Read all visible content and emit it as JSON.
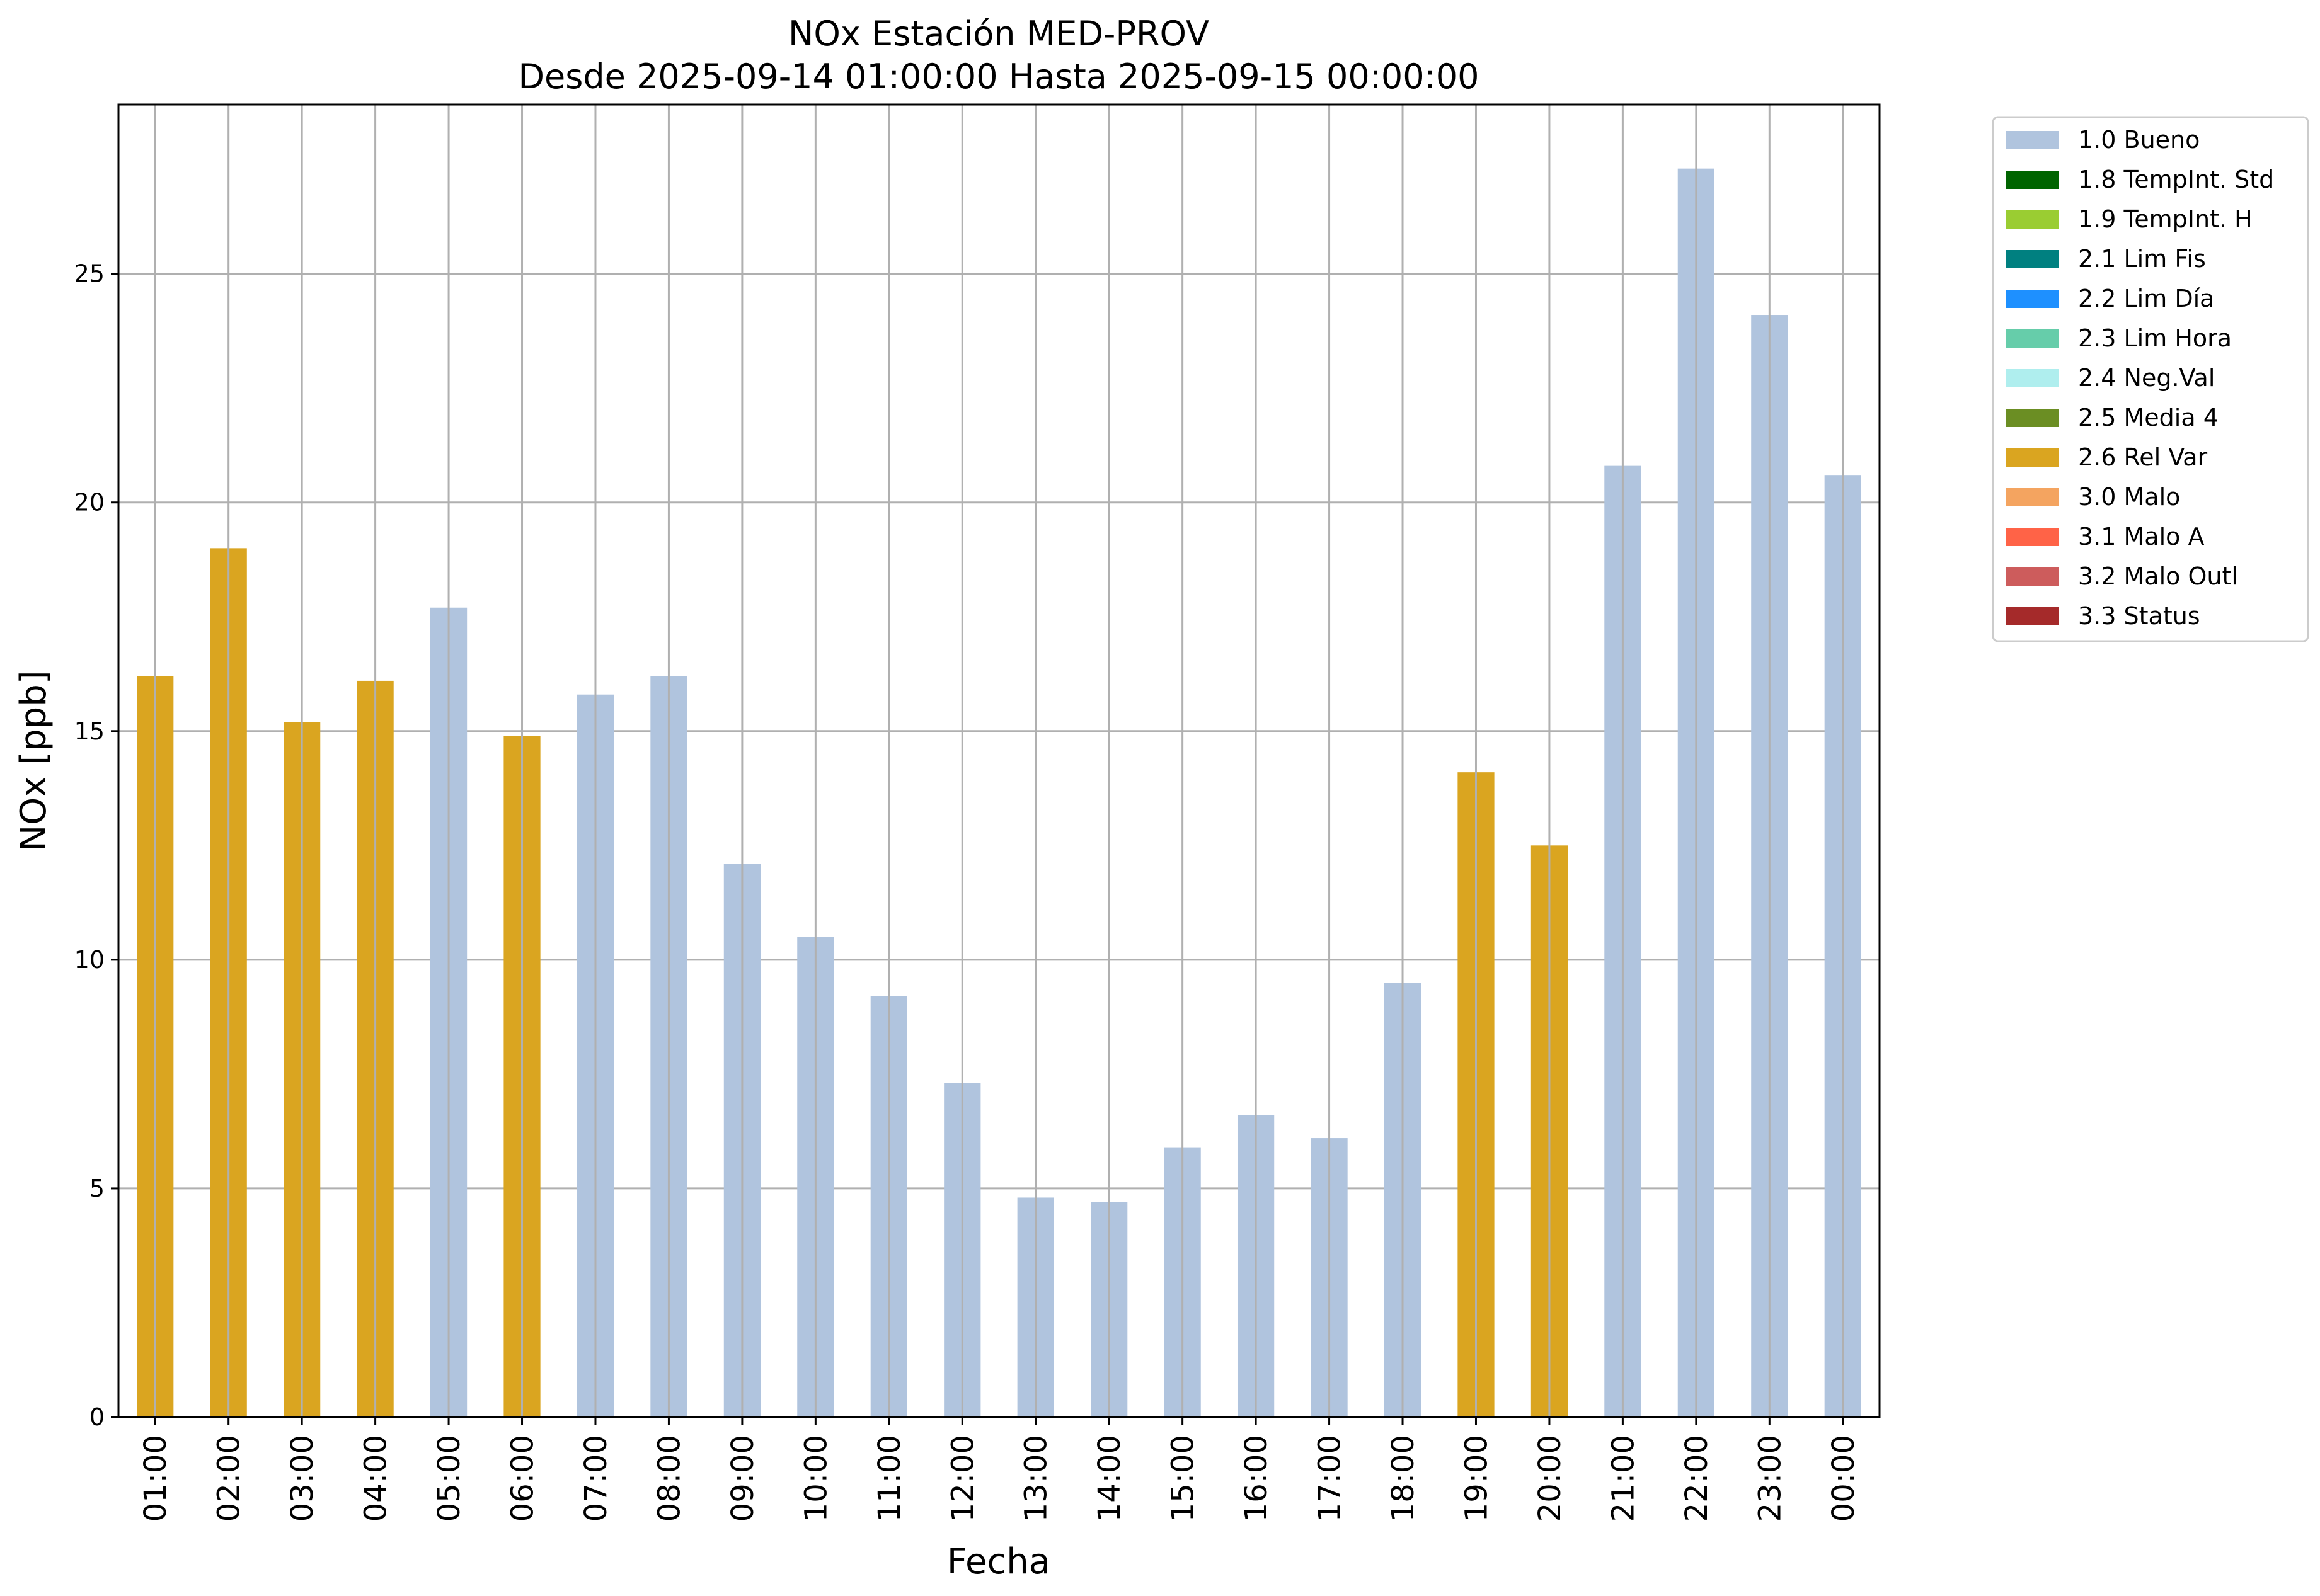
{
  "chart_data": {
    "type": "bar",
    "title": "NOx Estación MED-PROV",
    "subtitle": "Desde 2025-09-14 01:00:00 Hasta 2025-09-15 00:00:00",
    "xlabel": "Fecha",
    "ylabel": "NOx [ppb]",
    "ylim": [
      0,
      28.7
    ],
    "yticks": [
      0,
      5,
      10,
      15,
      20,
      25
    ],
    "grid": true,
    "legend_position": "outside-top-right",
    "categories": [
      "01:00",
      "02:00",
      "03:00",
      "04:00",
      "05:00",
      "06:00",
      "07:00",
      "08:00",
      "09:00",
      "10:00",
      "11:00",
      "12:00",
      "13:00",
      "14:00",
      "15:00",
      "16:00",
      "17:00",
      "18:00",
      "19:00",
      "20:00",
      "21:00",
      "22:00",
      "23:00",
      "00:00"
    ],
    "values": [
      16.2,
      19.0,
      15.2,
      16.1,
      17.7,
      14.9,
      15.8,
      16.2,
      12.1,
      10.5,
      9.2,
      7.3,
      4.8,
      4.7,
      5.9,
      6.6,
      6.1,
      9.5,
      14.1,
      12.5,
      20.8,
      27.3,
      24.1,
      20.6
    ],
    "flags": [
      "2.6 Rel Var",
      "2.6 Rel Var",
      "2.6 Rel Var",
      "2.6 Rel Var",
      "1.0 Bueno",
      "2.6 Rel Var",
      "1.0 Bueno",
      "1.0 Bueno",
      "1.0 Bueno",
      "1.0 Bueno",
      "1.0 Bueno",
      "1.0 Bueno",
      "1.0 Bueno",
      "1.0 Bueno",
      "1.0 Bueno",
      "1.0 Bueno",
      "1.0 Bueno",
      "1.0 Bueno",
      "2.6 Rel Var",
      "2.6 Rel Var",
      "1.0 Bueno",
      "1.0 Bueno",
      "1.0 Bueno",
      "1.0 Bueno"
    ],
    "legend": [
      {
        "label": "1.0 Bueno",
        "color": "#b0c4de"
      },
      {
        "label": "1.8 TempInt. Std",
        "color": "#006400"
      },
      {
        "label": "1.9 TempInt. H",
        "color": "#9acd32"
      },
      {
        "label": "2.1 Lim Fis",
        "color": "#008080"
      },
      {
        "label": "2.2 Lim Día",
        "color": "#1e90ff"
      },
      {
        "label": "2.3 Lim Hora",
        "color": "#66cdaa"
      },
      {
        "label": "2.4 Neg.Val",
        "color": "#afeeee"
      },
      {
        "label": "2.5 Media 4",
        "color": "#6b8e23"
      },
      {
        "label": "2.6 Rel Var",
        "color": "#daa520"
      },
      {
        "label": "3.0 Malo",
        "color": "#f4a460"
      },
      {
        "label": "3.1 Malo A",
        "color": "#ff6347"
      },
      {
        "label": "3.2 Malo Outl",
        "color": "#cd5c5c"
      },
      {
        "label": "3.3 Status",
        "color": "#a52a2a"
      }
    ]
  }
}
